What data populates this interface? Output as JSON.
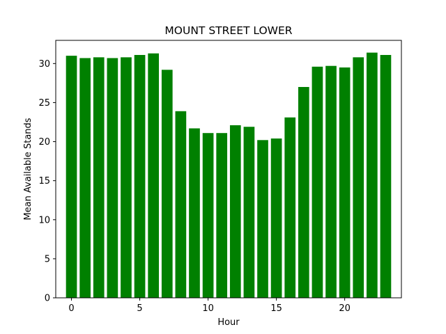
{
  "chart_data": {
    "type": "bar",
    "title": "MOUNT STREET LOWER",
    "xlabel": "Hour",
    "ylabel": "Mean Available Stands",
    "x": [
      0,
      1,
      2,
      3,
      4,
      5,
      6,
      7,
      8,
      9,
      10,
      11,
      12,
      13,
      14,
      15,
      16,
      17,
      18,
      19,
      20,
      21,
      22,
      23
    ],
    "values": [
      31.0,
      30.7,
      30.8,
      30.7,
      30.8,
      31.1,
      31.3,
      29.2,
      23.9,
      21.7,
      21.1,
      21.1,
      22.1,
      21.9,
      20.2,
      20.4,
      23.1,
      27.0,
      29.6,
      29.7,
      29.5,
      30.8,
      31.4,
      31.1
    ],
    "xlim": [
      -1.15,
      24.15
    ],
    "ylim": [
      0,
      32.97
    ],
    "xticks": [
      0,
      5,
      10,
      15,
      20
    ],
    "yticks": [
      0,
      5,
      10,
      15,
      20,
      25,
      30
    ],
    "bar_color": "#008000",
    "grid": false,
    "legend": "none"
  }
}
